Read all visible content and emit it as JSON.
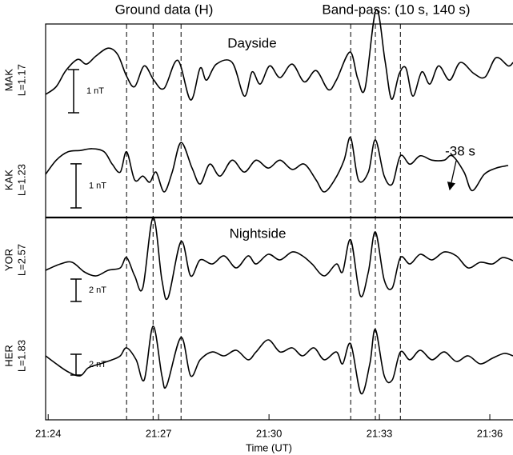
{
  "chart_data": {
    "type": "line",
    "title": "Ground data (H)",
    "subtitle": "Band-pass: (10 s, 140 s)",
    "xlabel": "Time (UT)",
    "xlim": [
      1283.93,
      1296.63
    ],
    "xticks": [
      {
        "value": 1284,
        "label": "21:24"
      },
      {
        "value": 1287,
        "label": "21:27"
      },
      {
        "value": 1290,
        "label": "21:30"
      },
      {
        "value": 1293,
        "label": "21:33"
      },
      {
        "value": 1296,
        "label": "21:36"
      }
    ],
    "vlines": [
      1286.13,
      1286.85,
      1287.61,
      1292.22,
      1292.89,
      1293.57
    ],
    "panel_labels": [
      "Dayside",
      "Nightside"
    ],
    "annotation": "-38 s",
    "series": [
      {
        "name": "MAK",
        "l_label": "L=1.17",
        "color": "#000000",
        "ylim": [
          -1.2,
          1.3
        ],
        "scale_bar": {
          "value": 1,
          "label": "1 nT"
        },
        "x": [
          1283.93,
          1284.22,
          1284.48,
          1284.8,
          1285.04,
          1285.3,
          1285.63,
          1285.89,
          1286.13,
          1286.35,
          1286.61,
          1286.87,
          1287.15,
          1287.52,
          1287.87,
          1288.13,
          1288.3,
          1288.57,
          1289.0,
          1289.33,
          1289.54,
          1289.76,
          1290.02,
          1290.3,
          1290.63,
          1290.96,
          1291.28,
          1291.61,
          1291.83,
          1292.2,
          1292.41,
          1292.61,
          1292.91,
          1293.15,
          1293.33,
          1293.54,
          1293.72,
          1293.91,
          1294.15,
          1294.37,
          1294.61,
          1294.91,
          1295.2,
          1295.57,
          1295.87,
          1296.17,
          1296.5,
          1296.63
        ],
        "values": [
          -0.33,
          -0.15,
          0.22,
          0.48,
          0.37,
          0.56,
          0.74,
          0.59,
          0.09,
          -0.15,
          0.33,
          0,
          -0.19,
          0.46,
          -0.46,
          0.28,
          0,
          0.37,
          0.41,
          -0.37,
          0.19,
          -0.09,
          0.33,
          0.06,
          0.37,
          -0.04,
          0.22,
          -0.22,
          0,
          0.65,
          0.04,
          -0.19,
          1.63,
          0.46,
          -0.44,
          0.15,
          0.28,
          -0.37,
          0.19,
          -0.09,
          0.33,
          0,
          0.41,
          0.15,
          0.07,
          0.52,
          0.33,
          0.41
        ]
      },
      {
        "name": "KAK",
        "l_label": "L=1.23",
        "color": "#000000",
        "ylim": [
          -0.85,
          1.09
        ],
        "scale_bar": {
          "value": 1,
          "label": "1 nT"
        },
        "x": [
          1283.93,
          1284.22,
          1284.54,
          1284.87,
          1285.2,
          1285.52,
          1285.74,
          1285.96,
          1286.13,
          1286.35,
          1286.57,
          1286.76,
          1286.93,
          1287.15,
          1287.37,
          1287.61,
          1287.91,
          1288.13,
          1288.39,
          1288.67,
          1289.0,
          1289.33,
          1289.65,
          1289.98,
          1290.3,
          1290.63,
          1290.96,
          1291.28,
          1291.5,
          1291.78,
          1292.04,
          1292.22,
          1292.43,
          1292.7,
          1292.89,
          1293.13,
          1293.35,
          1293.57,
          1293.83,
          1294.11,
          1294.43,
          1294.76,
          1294.98,
          1295.3,
          1295.52,
          1295.85,
          1296.17,
          1296.5
        ],
        "values": [
          0.13,
          0.45,
          0.64,
          0.67,
          0.71,
          0.64,
          0.36,
          0.18,
          0.64,
          0,
          0.09,
          -0.05,
          0.18,
          -0.27,
          0.18,
          0.85,
          0.27,
          -0.09,
          0.36,
          0.09,
          0.45,
          0.18,
          0.45,
          0.27,
          0.45,
          0.24,
          0.36,
          0,
          -0.27,
          0,
          0.45,
          0.96,
          0,
          0.18,
          0.91,
          0.09,
          -0.09,
          0.55,
          0.36,
          0.55,
          0.45,
          0.45,
          0.55,
          0.18,
          -0.24,
          0.13,
          0.27,
          0.33
        ]
      },
      {
        "name": "YOR",
        "l_label": "L=2.57",
        "color": "#000000",
        "ylim": [
          -5.36,
          3.79
        ],
        "scale_bar": {
          "value": 2,
          "label": "2 nT"
        },
        "x": [
          1283.93,
          1284.33,
          1284.65,
          1284.98,
          1285.3,
          1285.63,
          1285.96,
          1286.13,
          1286.35,
          1286.57,
          1286.85,
          1287.09,
          1287.26,
          1287.61,
          1287.87,
          1288.13,
          1288.46,
          1288.78,
          1289.11,
          1289.43,
          1289.65,
          1289.98,
          1290.3,
          1290.63,
          1290.91,
          1291.17,
          1291.5,
          1291.83,
          1292.0,
          1292.22,
          1292.48,
          1292.7,
          1292.89,
          1293.13,
          1293.35,
          1293.57,
          1293.83,
          1294.11,
          1294.43,
          1294.76,
          1295.09,
          1295.41,
          1295.74,
          1296.07,
          1296.35,
          1296.63
        ],
        "values": [
          -0.93,
          -0.36,
          -0.21,
          -1.07,
          -1.43,
          -0.93,
          -0.71,
          0.21,
          -1.43,
          -2.5,
          3.79,
          -1.79,
          -3.36,
          1.64,
          -1.43,
          0,
          -0.36,
          0.36,
          -0.71,
          0.36,
          -0.36,
          0.5,
          0,
          0.71,
          0.36,
          -0.36,
          -1.43,
          -0.36,
          -1.07,
          1.79,
          -3.21,
          -1.07,
          2.5,
          -1.79,
          -2.5,
          0.21,
          -0.36,
          0.5,
          0,
          0.71,
          0.36,
          -0.71,
          -0.21,
          -0.36,
          0.21,
          -0.07
        ]
      },
      {
        "name": "HER",
        "l_label": "L=1.83",
        "color": "#000000",
        "ylim": [
          -6.15,
          3.46
        ],
        "scale_bar": {
          "value": 2,
          "label": "2 nT"
        },
        "x": [
          1283.93,
          1284.22,
          1284.54,
          1284.87,
          1285.09,
          1285.41,
          1285.74,
          1285.96,
          1286.13,
          1286.39,
          1286.61,
          1286.85,
          1287.09,
          1287.22,
          1287.61,
          1287.87,
          1288.13,
          1288.46,
          1288.78,
          1289.11,
          1289.43,
          1289.65,
          1289.98,
          1290.3,
          1290.63,
          1290.91,
          1291.22,
          1291.5,
          1291.83,
          1292.0,
          1292.22,
          1292.5,
          1292.74,
          1292.89,
          1293.13,
          1293.35,
          1293.57,
          1293.83,
          1294.11,
          1294.43,
          1294.76,
          1295.09,
          1295.41,
          1295.74,
          1296.07,
          1296.39,
          1296.63
        ],
        "values": [
          0,
          -0.77,
          -1.54,
          -1.92,
          -1.15,
          -0.77,
          -0.38,
          0,
          0.77,
          -0.38,
          -2.31,
          2.85,
          -1.92,
          -2.85,
          1.77,
          -1.92,
          -0.38,
          0.38,
          0,
          0.54,
          -0.38,
          0.38,
          1.54,
          0.38,
          0.77,
          0,
          0.77,
          -0.38,
          0.38,
          -0.77,
          1.15,
          -3.62,
          -0.77,
          2.54,
          -1.92,
          -2.31,
          0.38,
          -0.38,
          0.54,
          -0.38,
          0.38,
          -0.54,
          0,
          -0.77,
          -0.23,
          0.23,
          0
        ]
      }
    ]
  }
}
